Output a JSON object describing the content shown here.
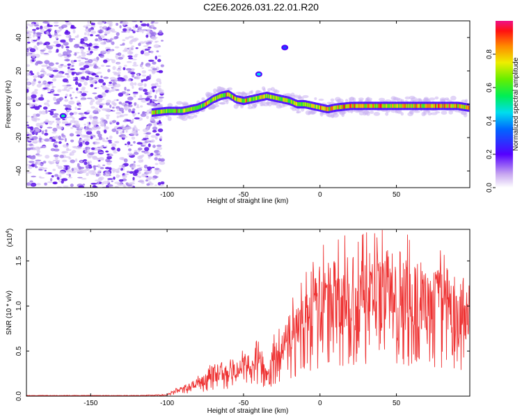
{
  "title": "C2E6.2026.031.22.01.R20",
  "chart_data": [
    {
      "type": "heatmap",
      "name": "spectrogram",
      "xlabel": "Height of straight line (km)",
      "ylabel": "Frequency (Hz)",
      "xlim": [
        -192,
        98
      ],
      "ylim": [
        -50,
        50
      ],
      "xticks": [
        -150,
        -100,
        -50,
        0,
        50
      ],
      "yticks": [
        -40,
        -20,
        0,
        20,
        40
      ],
      "xtick_labels": [
        "-150",
        "-100",
        "-50",
        "0",
        "50"
      ],
      "ytick_labels": [
        "-40",
        "-20",
        "0",
        "20",
        "40"
      ],
      "noise_region_x": [
        -192,
        -103
      ],
      "ridge": {
        "x": [
          -110,
          -100,
          -90,
          -80,
          -75,
          -70,
          -65,
          -60,
          -55,
          -50,
          -45,
          -40,
          -35,
          -30,
          -25,
          -20,
          -15,
          -10,
          -5,
          0,
          5,
          10,
          20,
          30,
          40,
          50,
          60,
          70,
          80,
          90,
          97
        ],
        "y": [
          -5,
          -4,
          -4,
          -2,
          0,
          3,
          5,
          6,
          3,
          2,
          3,
          4,
          5,
          4,
          3,
          2,
          0,
          0,
          -1,
          -2,
          -3,
          -2,
          -1,
          -1,
          -1,
          -1,
          -1,
          -1,
          -1,
          -1,
          -2
        ]
      },
      "spurs": [
        {
          "x": -40,
          "y": 18,
          "amp": 0.35
        },
        {
          "x": -168,
          "y": -7,
          "amp": 0.4
        },
        {
          "x": -23,
          "y": 34,
          "amp": 0.2
        }
      ]
    },
    {
      "type": "colorbar",
      "name": "colorbar",
      "label": "Normalized spectral amplitude",
      "range": [
        0,
        1
      ],
      "ticks": [
        0.0,
        0.2,
        0.4,
        0.6,
        0.8
      ],
      "tick_labels": [
        "0.0",
        "0.2",
        "0.4",
        "0.6",
        "0.8"
      ]
    },
    {
      "type": "line",
      "name": "snr",
      "xlabel": "Height of straight line (km)",
      "ylabel": "SNR (10 * v/v)",
      "scale_label": "(x10",
      "scale_exp": "4",
      "scale_close": ")",
      "xlim": [
        -192,
        98
      ],
      "ylim": [
        0,
        1.85
      ],
      "xticks": [
        -150,
        -100,
        -50,
        0,
        50
      ],
      "xtick_labels": [
        "-150",
        "-100",
        "-50",
        "0",
        "50"
      ],
      "yticks": [
        0.0,
        0.5,
        1.0,
        1.5
      ],
      "ytick_labels": [
        "0.0",
        "0.5",
        "1.0",
        "1.5"
      ],
      "color": "#ee3333",
      "envelope": {
        "x": [
          -192,
          -120,
          -100,
          -95,
          -90,
          -80,
          -75,
          -70,
          -60,
          -50,
          -45,
          -40,
          -35,
          -30,
          -25,
          -20,
          -15,
          -10,
          -5,
          0,
          5,
          10,
          15,
          20,
          25,
          30,
          40,
          50,
          55,
          60,
          70,
          80,
          90,
          97
        ],
        "y": [
          0.01,
          0.01,
          0.02,
          0.08,
          0.12,
          0.2,
          0.25,
          0.35,
          0.4,
          0.45,
          0.55,
          0.65,
          0.3,
          0.6,
          0.75,
          0.95,
          1.05,
          1.2,
          1.3,
          1.45,
          1.5,
          1.55,
          1.6,
          1.6,
          1.62,
          1.65,
          1.68,
          1.66,
          1.58,
          1.56,
          1.5,
          1.45,
          1.4,
          1.38
        ]
      }
    }
  ]
}
